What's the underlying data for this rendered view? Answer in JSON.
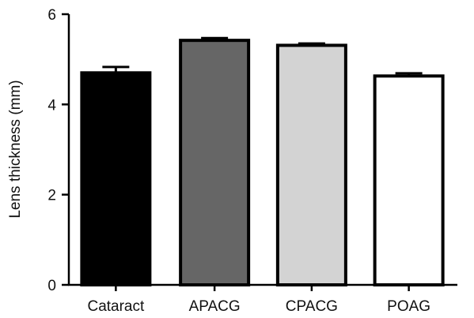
{
  "chart_data": {
    "type": "bar",
    "title": "",
    "xlabel": "",
    "ylabel": "Lens thickness (mm)",
    "ylim": [
      0,
      6
    ],
    "yticks": [
      0,
      2,
      4,
      6
    ],
    "grid": false,
    "legend": "none",
    "categories": [
      "Cataract",
      "APACG",
      "CPACG",
      "POAG"
    ],
    "values": [
      4.7,
      5.42,
      5.31,
      4.63
    ],
    "errors": [
      0.13,
      0.05,
      0.04,
      0.06
    ],
    "bar_colors": [
      "#000000",
      "#666666",
      "#d3d3d3",
      "#ffffff"
    ],
    "edge_color": "#000000"
  }
}
